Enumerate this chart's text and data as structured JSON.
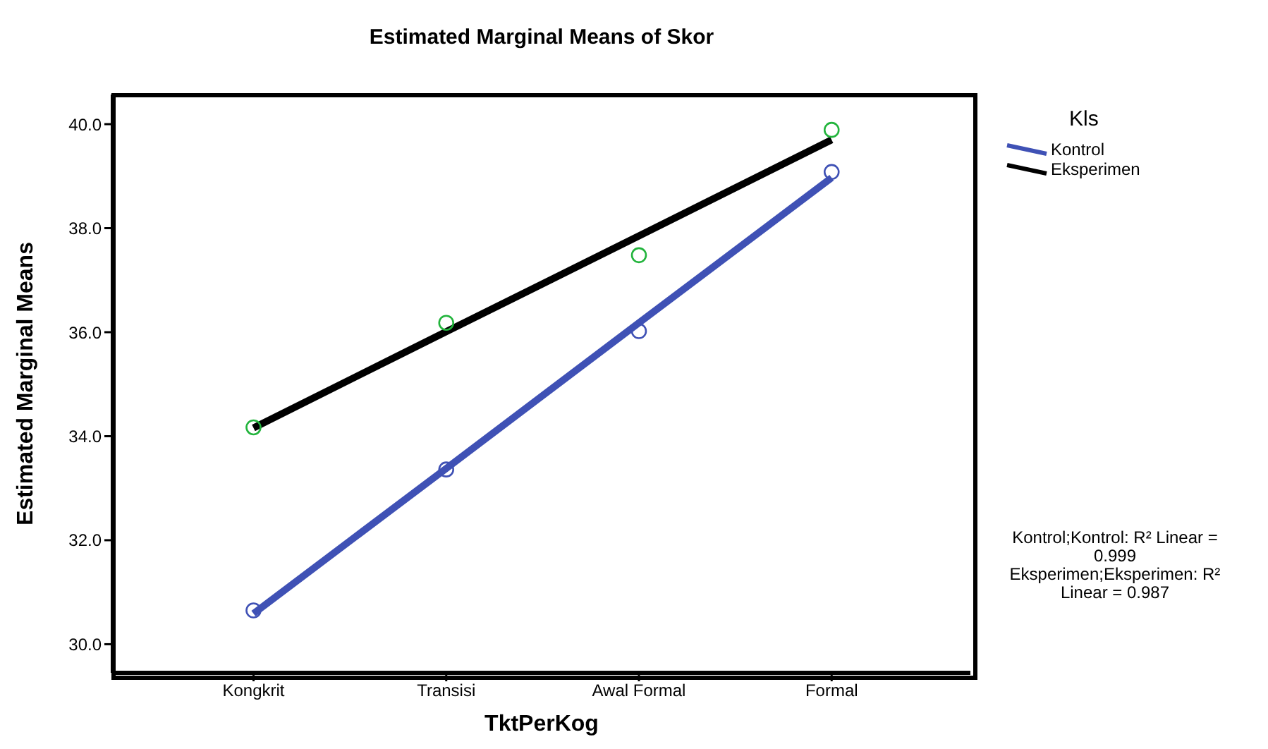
{
  "chart_data": {
    "type": "line",
    "title": "Estimated Marginal Means of Skor",
    "xlabel": "TktPerKog",
    "ylabel": "Estimated Marginal Means",
    "legend_title": "Kls",
    "legend": "right",
    "grid": false,
    "line_style": "solid",
    "categories": [
      "Kongkrit",
      "Transisi",
      "Awal Formal",
      "Formal"
    ],
    "ylim": [
      29.45,
      40.57
    ],
    "yticks": [
      {
        "value": 30,
        "label": "30.0"
      },
      {
        "value": 32,
        "label": "32.0"
      },
      {
        "value": 34,
        "label": "34.0"
      },
      {
        "value": 36,
        "label": "36.0"
      },
      {
        "value": 38,
        "label": "38.0"
      },
      {
        "value": 40,
        "label": "40.0"
      }
    ],
    "series": [
      {
        "type": "scatter",
        "marker": "circle",
        "color": "#3f51b5",
        "values": [
          30.65,
          33.36,
          36.02,
          39.08
        ]
      },
      {
        "type": "scatter",
        "marker": "circle",
        "color": "#22b43c",
        "values": [
          34.17,
          36.18,
          37.48,
          39.89
        ]
      },
      {
        "type": "line",
        "name": "Kontrol",
        "color": "#3f51b5",
        "values": [
          30.59,
          33.38,
          36.18,
          38.97
        ]
      },
      {
        "type": "line",
        "name": "Eksperimen",
        "color": "#000000",
        "values": [
          34.16,
          36.01,
          37.85,
          39.7
        ]
      }
    ],
    "annotations": [
      "Kontrol;Kontrol: R² Linear = 0.999",
      "Eksperimen;Eksperimen: R² Linear = 0.987"
    ]
  }
}
